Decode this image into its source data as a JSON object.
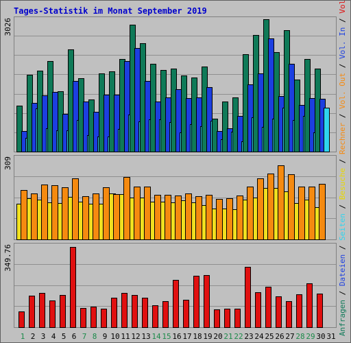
{
  "title": "Tages-Statistik im Monat September 2019",
  "colors": {
    "background": "#c0c0c0",
    "title": "#0000cc",
    "frame": "#808080",
    "grid": "#8f8f8f",
    "anfragen": "#0f7a58",
    "dateien": "#1c3fe0",
    "seiten": "#2fd5ee",
    "besuche": "#f0e020",
    "rechner": "#f58a10",
    "volumen": "#e01010",
    "weekday_label": "#000000",
    "weekend_label": "#1c8a4a"
  },
  "right_labels": {
    "top": [
      {
        "text": "Anfragen",
        "color": "#0f7a58"
      },
      {
        "text": " / ",
        "color": "#000000"
      },
      {
        "text": "Dateien",
        "color": "#1c3fe0"
      },
      {
        "text": " / ",
        "color": "#000000"
      },
      {
        "text": "Seiten",
        "color": "#2fd5ee"
      },
      {
        "text": " / ",
        "color": "#000000"
      },
      {
        "text": "Besuche",
        "color": "#e8d800"
      },
      {
        "text": " / ",
        "color": "#000000"
      },
      {
        "text": "Rechner",
        "color": "#f58a10"
      },
      {
        "text": " / ",
        "color": "#000000"
      },
      {
        "text": "Vol. Out",
        "color": "#f58a10"
      },
      {
        "text": " / ",
        "color": "#000000"
      },
      {
        "text": "Vol. In",
        "color": "#1c3fe0"
      },
      {
        "text": " / ",
        "color": "#000000"
      },
      {
        "text": "Volumen",
        "color": "#e01010"
      }
    ]
  },
  "chart_data": {
    "type": "bar",
    "days": [
      "1",
      "2",
      "3",
      "4",
      "5",
      "6",
      "7",
      "8",
      "9",
      "10",
      "11",
      "12",
      "13",
      "14",
      "15",
      "16",
      "17",
      "18",
      "19",
      "20",
      "21",
      "22",
      "23",
      "24",
      "25",
      "26",
      "27",
      "28",
      "29",
      "30",
      "31"
    ],
    "weekend_days": [
      "1",
      "7",
      "8",
      "14",
      "15",
      "21",
      "22",
      "28",
      "29"
    ],
    "panels": [
      {
        "id": "hits",
        "max_label": "3026",
        "max": 3026,
        "series": [
          {
            "name": "Anfragen",
            "color": "#0f7a58",
            "values": [
              1050,
              1760,
              1850,
              2070,
              1380,
              2340,
              1680,
              1190,
              1790,
              1840,
              2120,
              2900,
              2480,
              2000,
              1870,
              1900,
              1740,
              1700,
              1950,
              760,
              1150,
              1240,
              2220,
              2660,
              3020,
              2280,
              2780,
              1640,
              2110,
              1900,
              0
            ]
          },
          {
            "name": "Dateien",
            "color": "#1c3fe0",
            "values": [
              470,
              1120,
              1280,
              1360,
              860,
              1620,
              1140,
              910,
              1300,
              1300,
              2070,
              2360,
              1610,
              1150,
              1240,
              1420,
              1230,
              1240,
              1470,
              470,
              540,
              820,
              1530,
              1790,
              2590,
              1270,
              2000,
              1060,
              1230,
              1200,
              0
            ]
          },
          {
            "name": "Seiten",
            "color": "#2fd5ee",
            "values": [
              310,
              990,
              540,
              490,
              480,
              720,
              370,
              340,
              350,
              510,
              850,
              690,
              740,
              740,
              680,
              440,
              630,
              580,
              710,
              280,
              460,
              240,
              790,
              560,
              760,
              1000,
              720,
              810,
              440,
              1010,
              0
            ]
          }
        ]
      },
      {
        "id": "visits",
        "max_label": "309",
        "max": 309,
        "series": [
          {
            "name": "Besuche",
            "color": "#f0e020",
            "values": [
              134,
              155,
              150,
              141,
              137,
              160,
              144,
              135,
              135,
              173,
              172,
              158,
              158,
              143,
              143,
              140,
              147,
              141,
              129,
              118,
              118,
              115,
              150,
              158,
              196,
              195,
              181,
              137,
              150,
              123,
              0
            ]
          },
          {
            "name": "Rechner",
            "color": "#f58a10",
            "values": [
              186,
              173,
              209,
              206,
              197,
              232,
              163,
              173,
              197,
              172,
              235,
              200,
              200,
              170,
              170,
              165,
              175,
              164,
              170,
              154,
              157,
              165,
              200,
              232,
              250,
              280,
              247,
              200,
              199,
              210,
              0
            ]
          }
        ]
      },
      {
        "id": "volume",
        "max_label": "349.76",
        "max": 349.76,
        "series": [
          {
            "name": "Volumen",
            "color": "#e01010",
            "values": [
              67,
              134,
              147,
              116,
              138,
              345,
              81,
              89,
              78,
              125,
              146,
              139,
              125,
              94,
              111,
              203,
              119,
              221,
              224,
              76,
              79,
              79,
              258,
              149,
              174,
              131,
              111,
              142,
              188,
              145,
              0
            ]
          }
        ]
      }
    ]
  }
}
